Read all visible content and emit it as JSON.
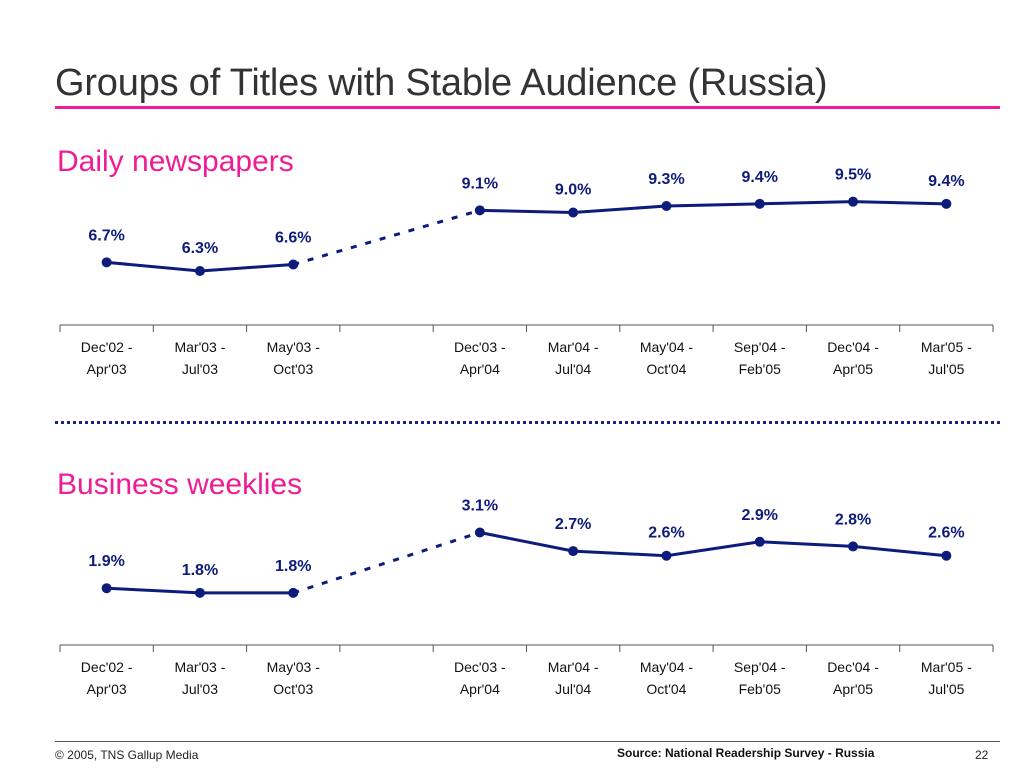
{
  "slide": {
    "title": "Groups of Titles with Stable Audience (Russia)",
    "footer_copyright": "© 2005, TNS Gallup Media",
    "footer_source": "Source: National Readership Survey - Russia",
    "page_number": "22"
  },
  "colors": {
    "accent": "#ee1c96",
    "series": "#0d1b7a",
    "axis": "#555555"
  },
  "chart_data": [
    {
      "type": "line",
      "title": "Daily newspapers",
      "categories": [
        "Dec'02 - Apr'03",
        "Mar'03 - Jul'03",
        "May'03 - Oct'03",
        "",
        "Dec'03 - Apr'04",
        "Mar'04 - Jul'04",
        "May'04 - Oct'04",
        "Sep'04 - Feb'05",
        "Dec'04 - Apr'05",
        "Mar'05 - Jul'05"
      ],
      "values": [
        6.7,
        6.3,
        6.6,
        null,
        9.1,
        9.0,
        9.3,
        9.4,
        9.5,
        9.4
      ],
      "data_labels": [
        "6.7%",
        "6.3%",
        "6.6%",
        "",
        "9.1%",
        "9.0%",
        "9.3%",
        "9.4%",
        "9.5%",
        "9.4%"
      ],
      "gap_style": "dashed",
      "ylim": [
        4.5,
        10.5
      ],
      "grid": false,
      "legend": "none"
    },
    {
      "type": "line",
      "title": "Business weeklies",
      "categories": [
        "Dec'02 - Apr'03",
        "Mar'03 - Jul'03",
        "May'03 - Oct'03",
        "",
        "Dec'03 - Apr'04",
        "Mar'04 - Jul'04",
        "May'04 - Oct'04",
        "Sep'04 - Feb'05",
        "Dec'04 - Apr'05",
        "Mar'05 - Jul'05"
      ],
      "values": [
        1.9,
        1.8,
        1.8,
        null,
        3.1,
        2.7,
        2.6,
        2.9,
        2.8,
        2.6
      ],
      "data_labels": [
        "1.9%",
        "1.8%",
        "1.8%",
        "",
        "3.1%",
        "2.7%",
        "2.6%",
        "2.9%",
        "2.8%",
        "2.6%"
      ],
      "gap_style": "dashed",
      "ylim": [
        1.0,
        3.8
      ],
      "grid": false,
      "legend": "none"
    }
  ]
}
